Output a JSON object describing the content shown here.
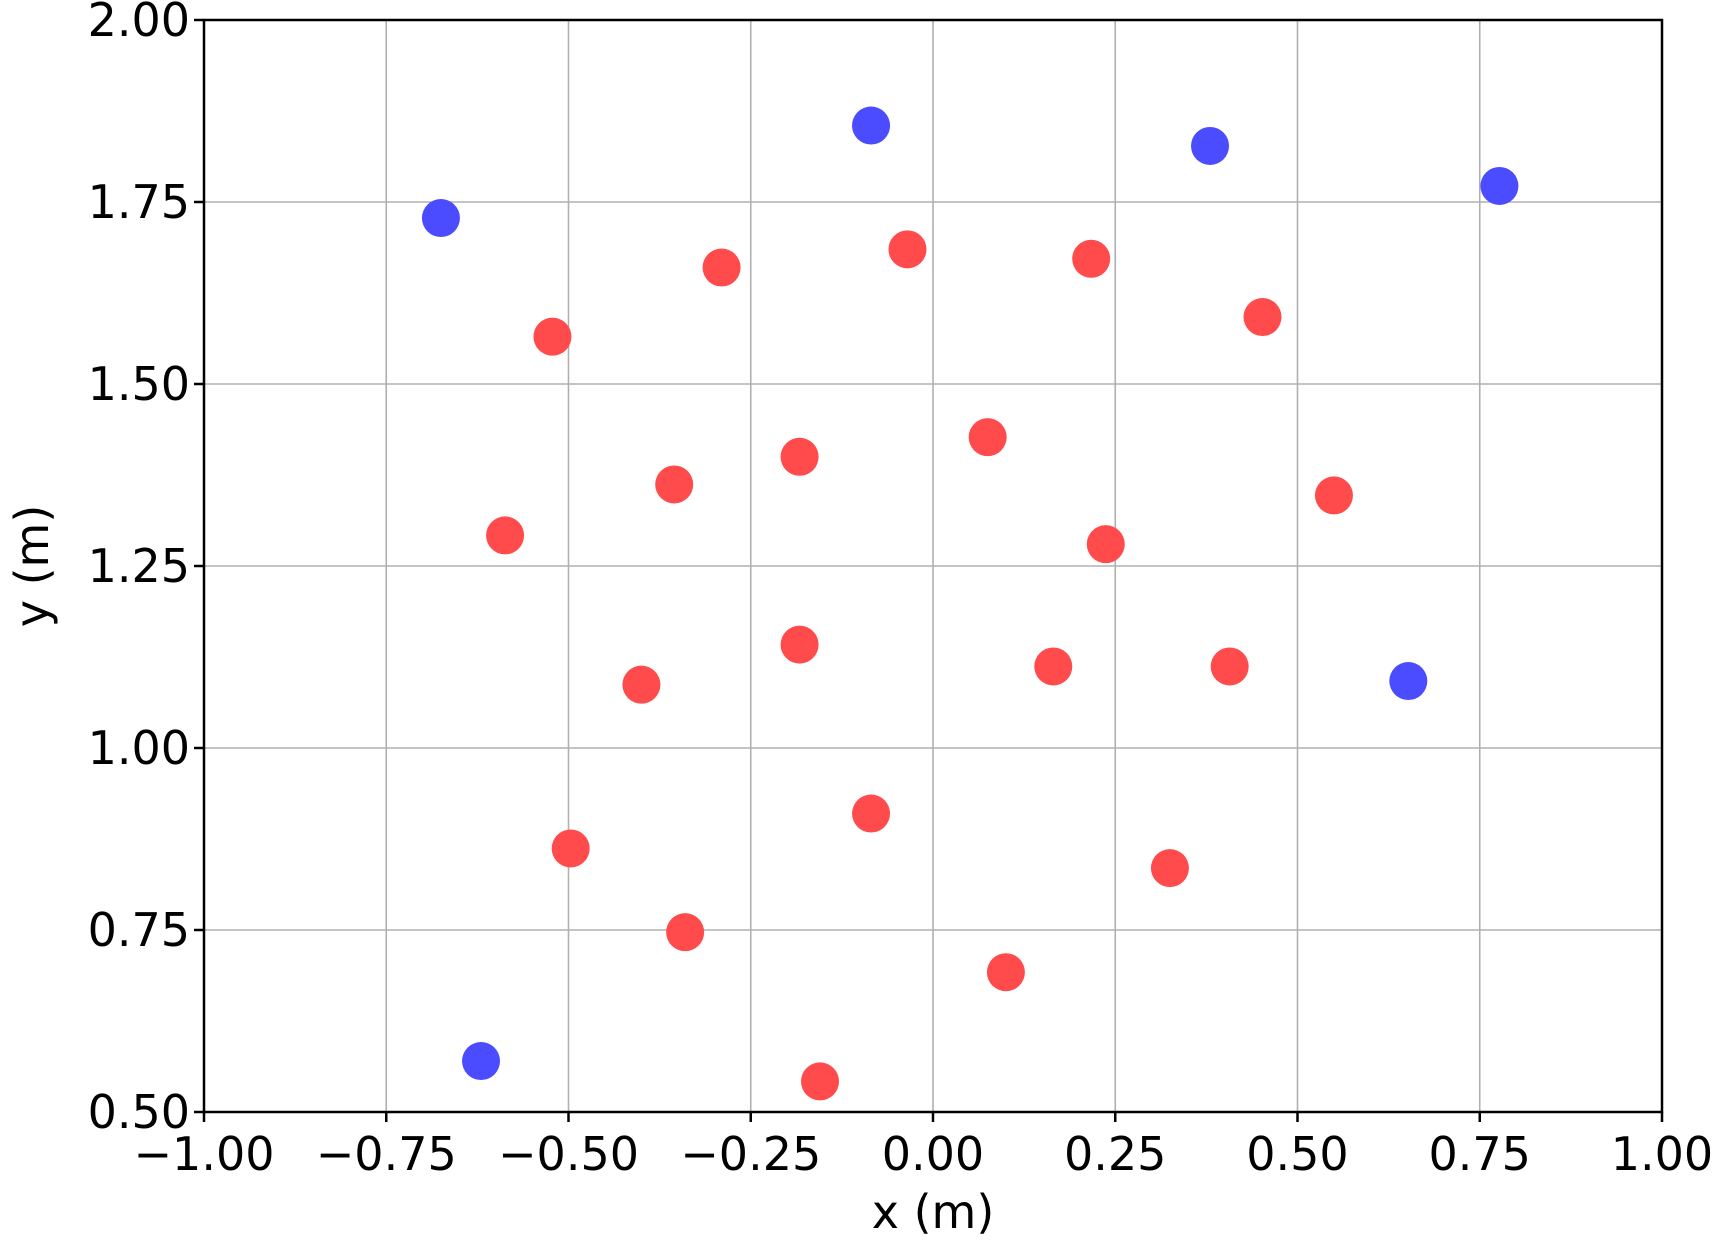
{
  "chart_data": {
    "type": "scatter",
    "title": "",
    "xlabel": "x (m)",
    "ylabel": "y (m)",
    "xlim": [
      -1.0,
      1.0
    ],
    "ylim": [
      0.5,
      2.0
    ],
    "xticks": [
      -1.0,
      -0.75,
      -0.5,
      -0.25,
      0.0,
      0.25,
      0.5,
      0.75,
      1.0
    ],
    "yticks": [
      0.5,
      0.75,
      1.0,
      1.25,
      1.5,
      1.75,
      2.0
    ],
    "xtick_labels": [
      "−1.00",
      "−0.75",
      "−0.50",
      "−0.25",
      "0.00",
      "0.25",
      "0.50",
      "0.75",
      "1.00"
    ],
    "ytick_labels": [
      "0.50",
      "0.75",
      "1.00",
      "1.25",
      "1.50",
      "1.75",
      "2.00"
    ],
    "grid": true,
    "series": [
      {
        "color": "#ff4b4b",
        "points": [
          {
            "x": -0.522,
            "y": 1.565
          },
          {
            "x": -0.29,
            "y": 1.66
          },
          {
            "x": -0.035,
            "y": 1.685
          },
          {
            "x": 0.217,
            "y": 1.672
          },
          {
            "x": 0.452,
            "y": 1.592
          },
          {
            "x": -0.587,
            "y": 1.292
          },
          {
            "x": -0.355,
            "y": 1.362
          },
          {
            "x": -0.183,
            "y": 1.4
          },
          {
            "x": 0.075,
            "y": 1.427
          },
          {
            "x": 0.237,
            "y": 1.28
          },
          {
            "x": 0.55,
            "y": 1.347
          },
          {
            "x": -0.4,
            "y": 1.087
          },
          {
            "x": -0.183,
            "y": 1.142
          },
          {
            "x": 0.165,
            "y": 1.112
          },
          {
            "x": 0.407,
            "y": 1.112
          },
          {
            "x": -0.497,
            "y": 0.862
          },
          {
            "x": -0.085,
            "y": 0.91
          },
          {
            "x": 0.325,
            "y": 0.835
          },
          {
            "x": -0.34,
            "y": 0.747
          },
          {
            "x": 0.1,
            "y": 0.692
          },
          {
            "x": -0.155,
            "y": 0.542
          }
        ]
      },
      {
        "color": "#4b4bff",
        "points": [
          {
            "x": -0.675,
            "y": 1.728
          },
          {
            "x": -0.085,
            "y": 1.855
          },
          {
            "x": 0.38,
            "y": 1.827
          },
          {
            "x": 0.777,
            "y": 1.772
          },
          {
            "x": 0.652,
            "y": 1.092
          },
          {
            "x": -0.62,
            "y": 0.57
          }
        ]
      }
    ]
  }
}
